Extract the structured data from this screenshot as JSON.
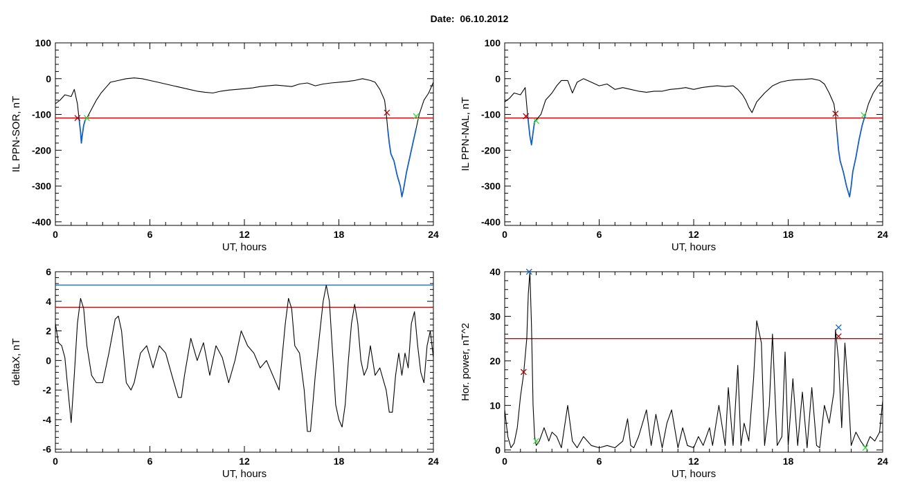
{
  "title": "Date:  06.10.2012",
  "colors": {
    "trace": "#000000",
    "threshold_red": "#cc0000",
    "threshold_blue": "#1560bd",
    "segment_blue": "#1560bd",
    "marker_red": "#b00000",
    "marker_green": "#3bd63b",
    "marker_blue": "#1560bd"
  },
  "chart_data": [
    {
      "id": "sor",
      "type": "line",
      "xlabel": "UT, hours",
      "ylabel": "IL PPN-SOR, nT",
      "xlim": [
        0,
        24
      ],
      "ylim": [
        -410,
        100
      ],
      "xticks": [
        0,
        6,
        12,
        18,
        24
      ],
      "xtick_labels": [
        "0",
        "6",
        "12",
        "18",
        "24"
      ],
      "yticks": [
        -400,
        -300,
        -200,
        -100,
        0,
        100
      ],
      "ytick_labels": [
        "-400",
        "-300",
        "-200",
        "-100",
        "0",
        "100"
      ],
      "threshold": {
        "y": -110,
        "color": "red"
      },
      "series": [
        {
          "x": [
            0,
            0.3,
            0.6,
            1.0,
            1.2,
            1.4,
            1.5,
            1.6,
            1.65,
            1.7,
            1.8,
            1.9,
            2.0,
            2.3,
            2.6,
            2.9,
            3.2,
            3.5,
            4.0,
            4.5,
            5.0,
            5.5,
            6.0,
            6.5,
            7.0,
            7.5,
            8.0,
            8.5,
            9.0,
            9.5,
            10.0,
            10.5,
            11.0,
            11.5,
            12.0,
            12.5,
            13.0,
            13.5,
            14.0,
            14.5,
            15.0,
            15.5,
            16.0,
            16.5,
            17.0,
            17.5,
            18.0,
            18.5,
            19.0,
            19.5,
            20.0,
            20.3,
            20.6,
            20.9,
            21.0,
            21.1,
            21.2,
            21.3,
            21.5,
            21.7,
            21.9,
            22.0,
            22.1,
            22.3,
            22.5,
            22.7,
            22.9,
            23.1,
            23.4,
            23.7,
            24.0
          ],
          "y": [
            -70,
            -60,
            -45,
            -50,
            -30,
            -70,
            -110,
            -150,
            -180,
            -160,
            -130,
            -115,
            -110,
            -85,
            -60,
            -40,
            -25,
            -10,
            -5,
            0,
            2,
            0,
            -5,
            -10,
            -15,
            -20,
            -25,
            -30,
            -35,
            -38,
            -40,
            -35,
            -32,
            -30,
            -28,
            -26,
            -22,
            -20,
            -18,
            -20,
            -22,
            -15,
            -12,
            -20,
            -15,
            -12,
            -10,
            -8,
            -5,
            0,
            -5,
            -10,
            -30,
            -60,
            -95,
            -140,
            -180,
            -210,
            -230,
            -270,
            -300,
            -330,
            -310,
            -260,
            -220,
            -180,
            -140,
            -100,
            -60,
            -40,
            -10
          ]
        }
      ],
      "blue_segments": [
        [
          1.5,
          2.0
        ],
        [
          21.1,
          22.9
        ]
      ],
      "markers": [
        {
          "x": 1.4,
          "y": -110,
          "color": "red"
        },
        {
          "x": 2.0,
          "y": -110,
          "color": "green"
        },
        {
          "x": 21.05,
          "y": -95,
          "color": "red"
        },
        {
          "x": 22.9,
          "y": -105,
          "color": "green"
        }
      ]
    },
    {
      "id": "nal",
      "type": "line",
      "xlabel": "UT, hours",
      "ylabel": "IL PPN-NAL, nT",
      "xlim": [
        0,
        24
      ],
      "ylim": [
        -410,
        100
      ],
      "xticks": [
        0,
        6,
        12,
        18,
        24
      ],
      "xtick_labels": [
        "0",
        "6",
        "12",
        "18",
        "24"
      ],
      "yticks": [
        -400,
        -300,
        -200,
        -100,
        0,
        100
      ],
      "ytick_labels": [
        "-400",
        "-300",
        "-200",
        "-100",
        "0",
        "100"
      ],
      "threshold": {
        "y": -110,
        "color": "red"
      },
      "series": [
        {
          "x": [
            0,
            0.3,
            0.6,
            1.0,
            1.3,
            1.45,
            1.6,
            1.7,
            1.8,
            1.9,
            2.0,
            2.3,
            2.6,
            3.0,
            3.3,
            3.6,
            4.0,
            4.3,
            4.6,
            5.0,
            5.5,
            6.0,
            6.5,
            7.0,
            7.5,
            8.0,
            8.5,
            9.0,
            9.5,
            10.0,
            10.5,
            11.0,
            11.5,
            12.0,
            12.5,
            13.0,
            13.5,
            14.0,
            14.5,
            14.8,
            15.1,
            15.3,
            15.5,
            15.7,
            16.0,
            16.5,
            17.0,
            17.5,
            18.0,
            18.5,
            19.0,
            19.5,
            20.0,
            20.3,
            20.6,
            20.9,
            21.0,
            21.1,
            21.2,
            21.3,
            21.5,
            21.7,
            21.9,
            22.0,
            22.1,
            22.3,
            22.5,
            22.7,
            22.9,
            23.1,
            23.4,
            23.7,
            24.0
          ],
          "y": [
            -65,
            -55,
            -40,
            -45,
            -25,
            -100,
            -160,
            -185,
            -150,
            -120,
            -115,
            -100,
            -60,
            -40,
            -20,
            -5,
            -5,
            -40,
            -10,
            0,
            -10,
            -20,
            -15,
            -30,
            -25,
            -30,
            -35,
            -38,
            -35,
            -35,
            -30,
            -28,
            -25,
            -30,
            -25,
            -22,
            -20,
            -22,
            -20,
            -30,
            -45,
            -60,
            -80,
            -95,
            -65,
            -40,
            -20,
            -10,
            -5,
            -3,
            -2,
            0,
            -5,
            -15,
            -40,
            -70,
            -100,
            -150,
            -200,
            -230,
            -260,
            -300,
            -330,
            -300,
            -260,
            -220,
            -170,
            -130,
            -100,
            -70,
            -40,
            -20,
            -5
          ]
        }
      ],
      "blue_segments": [
        [
          1.45,
          2.0
        ],
        [
          21.1,
          22.9
        ]
      ],
      "markers": [
        {
          "x": 1.35,
          "y": -105,
          "color": "red"
        },
        {
          "x": 2.0,
          "y": -118,
          "color": "green"
        },
        {
          "x": 21.0,
          "y": -98,
          "color": "red"
        },
        {
          "x": 22.8,
          "y": -102,
          "color": "green"
        }
      ]
    },
    {
      "id": "deltax",
      "type": "line",
      "xlabel": "UT, hours",
      "ylabel": "deltaX, nT",
      "xlim": [
        0,
        24
      ],
      "ylim": [
        -6.2,
        6
      ],
      "xticks": [
        0,
        6,
        12,
        18,
        24
      ],
      "xtick_labels": [
        "0",
        "6",
        "12",
        "18",
        "24"
      ],
      "yticks": [
        -6,
        -4,
        -2,
        0,
        2,
        4,
        6
      ],
      "ytick_labels": [
        "-6",
        "-4",
        "-2",
        "0",
        "2",
        "4",
        "6"
      ],
      "thresholds": [
        {
          "y": 5.1,
          "color": "blue"
        },
        {
          "y": 3.6,
          "color": "red"
        }
      ],
      "series": [
        {
          "x": [
            0,
            0.2,
            0.4,
            0.6,
            0.8,
            1.0,
            1.2,
            1.4,
            1.6,
            1.8,
            2.0,
            2.3,
            2.6,
            3.0,
            3.4,
            3.8,
            4.0,
            4.2,
            4.5,
            4.8,
            5.0,
            5.4,
            5.8,
            6.2,
            6.6,
            7.0,
            7.4,
            7.8,
            8.0,
            8.2,
            8.6,
            9.0,
            9.4,
            9.8,
            10.2,
            10.6,
            11.0,
            11.4,
            11.8,
            12.2,
            12.6,
            13.0,
            13.4,
            13.8,
            14.2,
            14.6,
            14.8,
            15.0,
            15.2,
            15.5,
            15.8,
            16.0,
            16.2,
            16.5,
            16.8,
            17.0,
            17.2,
            17.4,
            17.6,
            17.8,
            18.0,
            18.2,
            18.4,
            18.6,
            18.8,
            19.0,
            19.2,
            19.4,
            19.6,
            19.8,
            20.0,
            20.3,
            20.6,
            21.0,
            21.2,
            21.4,
            21.6,
            21.8,
            22.0,
            22.2,
            22.4,
            22.6,
            22.8,
            23.0,
            23.2,
            23.4,
            23.6,
            23.8,
            24.0
          ],
          "y": [
            2.5,
            1.2,
            1.0,
            0.2,
            -2.0,
            -4.2,
            -1.0,
            2.5,
            4.2,
            3.5,
            1.0,
            -1.0,
            -1.5,
            -1.5,
            0.5,
            2.8,
            3.0,
            2.0,
            -1.5,
            -2.0,
            -1.5,
            0.5,
            1.0,
            -0.5,
            1.0,
            0.5,
            -1.0,
            -2.5,
            -2.5,
            -1.0,
            1.5,
            0.0,
            1.2,
            -1.0,
            1.0,
            0.2,
            -1.5,
            0.0,
            2.0,
            1.0,
            0.5,
            -0.5,
            0.0,
            -1.0,
            -2.0,
            2.5,
            4.2,
            3.5,
            1.0,
            0.5,
            -2.0,
            -4.8,
            -4.8,
            -1.0,
            2.0,
            4.0,
            5.1,
            4.0,
            0.5,
            -3.0,
            -4.0,
            -4.5,
            -3.0,
            0.0,
            2.5,
            3.8,
            2.5,
            0.0,
            -1.0,
            -0.5,
            1.0,
            -1.0,
            -0.5,
            -2.0,
            -3.5,
            -3.5,
            -1.0,
            0.5,
            -1.0,
            0.5,
            -0.5,
            2.5,
            3.3,
            1.0,
            -0.8,
            -1.5,
            1.0,
            2.0,
            0.2
          ]
        }
      ],
      "blue_segments": [],
      "markers": []
    },
    {
      "id": "power",
      "type": "line",
      "xlabel": "UT, hours",
      "ylabel": "Hor. power, nT^2",
      "xlim": [
        0,
        24
      ],
      "ylim": [
        -0.5,
        40
      ],
      "xticks": [
        0,
        6,
        12,
        18,
        24
      ],
      "xtick_labels": [
        "0",
        "6",
        "12",
        "18",
        "24"
      ],
      "yticks": [
        0,
        10,
        20,
        30,
        40
      ],
      "ytick_labels": [
        "0",
        "10",
        "20",
        "30",
        "40"
      ],
      "threshold": {
        "y": 25,
        "color": "red"
      },
      "series": [
        {
          "x": [
            0,
            0.2,
            0.4,
            0.6,
            0.8,
            1.0,
            1.2,
            1.4,
            1.5,
            1.6,
            1.7,
            1.8,
            1.9,
            2.0,
            2.2,
            2.5,
            2.8,
            3.0,
            3.3,
            3.6,
            4.0,
            4.3,
            4.6,
            5.0,
            5.5,
            6.0,
            6.5,
            7.0,
            7.5,
            7.8,
            8.0,
            8.2,
            8.5,
            9.0,
            9.3,
            9.6,
            10.0,
            10.3,
            10.6,
            11.0,
            11.3,
            11.6,
            12.0,
            12.3,
            12.6,
            13.0,
            13.2,
            13.6,
            14.0,
            14.2,
            14.5,
            14.8,
            15.0,
            15.2,
            15.5,
            15.8,
            16.0,
            16.3,
            16.5,
            16.8,
            17.0,
            17.3,
            17.6,
            17.8,
            18.0,
            18.3,
            18.6,
            18.9,
            19.2,
            19.5,
            19.8,
            20.0,
            20.3,
            20.6,
            20.9,
            21.0,
            21.2,
            21.4,
            21.6,
            21.8,
            22.0,
            22.3,
            22.6,
            22.9,
            23.2,
            23.5,
            23.8,
            24.0
          ],
          "y": [
            9,
            3,
            0.5,
            1.5,
            5,
            12,
            17,
            25,
            35,
            40,
            28,
            10,
            3,
            1,
            2,
            5,
            2,
            4,
            3,
            0.5,
            10,
            2,
            0.5,
            3,
            1,
            0.5,
            1,
            0.5,
            2,
            7,
            1,
            0.5,
            3,
            9,
            1,
            8,
            0.5,
            6,
            9,
            0.5,
            5,
            1,
            0.5,
            3,
            1,
            5,
            1,
            10,
            1,
            14,
            1,
            19,
            1,
            6,
            2,
            16,
            29,
            24,
            1,
            10,
            26,
            1,
            3,
            22,
            1,
            16,
            1,
            13,
            0.5,
            14,
            1,
            0.5,
            10,
            6,
            13,
            27,
            20,
            5,
            24,
            14,
            1,
            4,
            2,
            0.5,
            3,
            2,
            4,
            11
          ]
        }
      ],
      "blue_segments": [],
      "markers": [
        {
          "x": 1.2,
          "y": 17.5,
          "color": "red"
        },
        {
          "x": 1.55,
          "y": 40,
          "color": "blue"
        },
        {
          "x": 2.0,
          "y": 2,
          "color": "green"
        },
        {
          "x": 21.2,
          "y": 25.5,
          "color": "red"
        },
        {
          "x": 21.2,
          "y": 27.5,
          "color": "blue"
        },
        {
          "x": 22.9,
          "y": 0.5,
          "color": "green"
        }
      ]
    }
  ]
}
